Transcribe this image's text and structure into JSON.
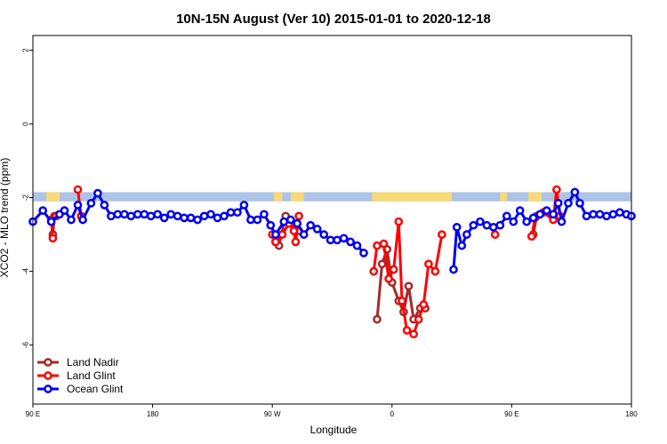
{
  "chart_data": {
    "type": "line",
    "title": "10N-15N August (Ver 10)   2015-01-01 to 2020-12-18",
    "xlabel": "Longitude",
    "ylabel": "XCO2 - MLO trend (ppm)",
    "xlim": [
      0,
      360
    ],
    "ylim": [
      -7.6,
      2.4
    ],
    "x_ticks": [
      {
        "value": 0,
        "label": "90 E"
      },
      {
        "value": 72,
        "label": "180"
      },
      {
        "value": 144,
        "label": "90 W"
      },
      {
        "value": 216,
        "label": "0"
      },
      {
        "value": 288,
        "label": "90 E"
      },
      {
        "value": 360,
        "label": "180"
      }
    ],
    "y_ticks": [
      {
        "value": 2,
        "label": "2"
      },
      {
        "value": 0,
        "label": "0"
      },
      {
        "value": -2,
        "label": "-2"
      },
      {
        "value": -4,
        "label": "-4"
      },
      {
        "value": -6,
        "label": "-6"
      }
    ],
    "legend_position": "bottom-left",
    "band": {
      "y_top": -1.85,
      "y_bottom": -2.1,
      "color": "#aec3e6",
      "land_color": "#f7d97c",
      "land_segments": [
        [
          8,
          16
        ],
        [
          145,
          150
        ],
        [
          155,
          163
        ],
        [
          204,
          252
        ],
        [
          281,
          285
        ],
        [
          298,
          306
        ]
      ]
    },
    "series": [
      {
        "name": "Land Nadir",
        "color": "#a52a2a",
        "segments": [
          [
            [
              12,
              -3.0
            ],
            [
              13,
              -2.5
            ],
            [
              16,
              -2.45
            ]
          ],
          [
            [
              146,
              -3.2
            ],
            [
              148,
              -3.3
            ],
            [
              152,
              -2.5
            ],
            [
              157,
              -2.7
            ],
            [
              160,
              -2.9
            ]
          ],
          [
            [
              207,
              -5.3
            ],
            [
              210,
              -3.8
            ],
            [
              213,
              -3.4
            ],
            [
              216,
              -4.3
            ],
            [
              220,
              -4.8
            ],
            [
              223,
              -5.1
            ],
            [
              226,
              -4.4
            ],
            [
              229,
              -5.3
            ],
            [
              233,
              -5.0
            ],
            [
              236,
              -5.0
            ]
          ],
          [
            [
              301,
              -3.0
            ],
            [
              303,
              -2.5
            ]
          ]
        ]
      },
      {
        "name": "Land Glint",
        "color": "#ff0000",
        "segments": [
          [
            [
              12,
              -3.1
            ],
            [
              11,
              -2.6
            ],
            [
              14,
              -2.5
            ]
          ],
          [
            [
              27,
              -1.78
            ],
            [
              29,
              -2.5
            ]
          ],
          [
            [
              144,
              -3.0
            ],
            [
              146,
              -3.2
            ],
            [
              150,
              -3.0
            ],
            [
              154,
              -2.7
            ],
            [
              157,
              -2.9
            ],
            [
              158,
              -3.2
            ],
            [
              160,
              -2.5
            ]
          ],
          [
            [
              205,
              -4.0
            ],
            [
              207,
              -3.3
            ],
            [
              211,
              -3.25
            ],
            [
              214,
              -4.2
            ],
            [
              217,
              -3.95
            ],
            [
              220,
              -2.65
            ],
            [
              222,
              -4.8
            ],
            [
              225,
              -5.6
            ],
            [
              229,
              -5.7
            ],
            [
              232,
              -5.3
            ],
            [
              235,
              -4.9
            ],
            [
              238,
              -3.8
            ],
            [
              242,
              -4.0
            ],
            [
              246,
              -3.0
            ]
          ],
          [
            [
              278,
              -3.0
            ]
          ],
          [
            [
              300,
              -3.05
            ],
            [
              302,
              -2.55
            ],
            [
              307,
              -2.4
            ],
            [
              313,
              -2.6
            ],
            [
              315,
              -1.78
            ],
            [
              317,
              -2.5
            ]
          ]
        ]
      },
      {
        "name": "Ocean Glint",
        "color": "#0000ee",
        "segments": [
          [
            [
              0,
              -2.65
            ],
            [
              6,
              -2.35
            ],
            [
              11,
              -2.65
            ],
            [
              16,
              -2.45
            ],
            [
              19,
              -2.35
            ],
            [
              23,
              -2.6
            ],
            [
              27,
              -2.2
            ],
            [
              30,
              -2.6
            ],
            [
              35,
              -2.15
            ],
            [
              39,
              -1.88
            ],
            [
              43,
              -2.2
            ],
            [
              47,
              -2.5
            ],
            [
              51,
              -2.45
            ],
            [
              55,
              -2.45
            ],
            [
              59,
              -2.5
            ],
            [
              63,
              -2.45
            ],
            [
              67,
              -2.45
            ],
            [
              71,
              -2.5
            ],
            [
              75,
              -2.45
            ],
            [
              79,
              -2.55
            ],
            [
              83,
              -2.45
            ],
            [
              87,
              -2.5
            ],
            [
              91,
              -2.55
            ],
            [
              95,
              -2.55
            ],
            [
              99,
              -2.6
            ],
            [
              103,
              -2.5
            ],
            [
              107,
              -2.45
            ],
            [
              111,
              -2.55
            ],
            [
              115,
              -2.5
            ],
            [
              119,
              -2.4
            ],
            [
              123,
              -2.4
            ],
            [
              127,
              -2.2
            ],
            [
              131,
              -2.6
            ],
            [
              135,
              -2.6
            ],
            [
              139,
              -2.45
            ],
            [
              143,
              -2.75
            ],
            [
              146,
              -3.0
            ],
            [
              151,
              -2.65
            ],
            [
              155,
              -2.6
            ],
            [
              159,
              -2.7
            ],
            [
              163,
              -3.0
            ],
            [
              167,
              -2.75
            ],
            [
              171,
              -2.85
            ],
            [
              175,
              -3.0
            ],
            [
              179,
              -3.15
            ],
            [
              183,
              -3.15
            ],
            [
              187,
              -3.1
            ],
            [
              191,
              -3.2
            ],
            [
              195,
              -3.3
            ],
            [
              199,
              -3.5
            ]
          ],
          [
            [
              253,
              -3.95
            ],
            [
              255,
              -2.8
            ],
            [
              258,
              -3.3
            ],
            [
              261,
              -3.0
            ],
            [
              265,
              -2.75
            ],
            [
              269,
              -2.65
            ],
            [
              273,
              -2.75
            ],
            [
              277,
              -2.8
            ],
            [
              281,
              -2.75
            ],
            [
              285,
              -2.5
            ],
            [
              289,
              -2.65
            ],
            [
              293,
              -2.35
            ],
            [
              297,
              -2.65
            ],
            [
              301,
              -2.55
            ],
            [
              305,
              -2.45
            ],
            [
              309,
              -2.35
            ],
            [
              313,
              -2.45
            ],
            [
              316,
              -2.15
            ],
            [
              318,
              -2.65
            ],
            [
              322,
              -2.15
            ],
            [
              326,
              -1.85
            ],
            [
              329,
              -2.15
            ],
            [
              333,
              -2.5
            ],
            [
              337,
              -2.45
            ],
            [
              341,
              -2.45
            ],
            [
              345,
              -2.5
            ],
            [
              349,
              -2.45
            ],
            [
              353,
              -2.4
            ],
            [
              357,
              -2.45
            ],
            [
              360,
              -2.5
            ]
          ]
        ]
      }
    ]
  }
}
